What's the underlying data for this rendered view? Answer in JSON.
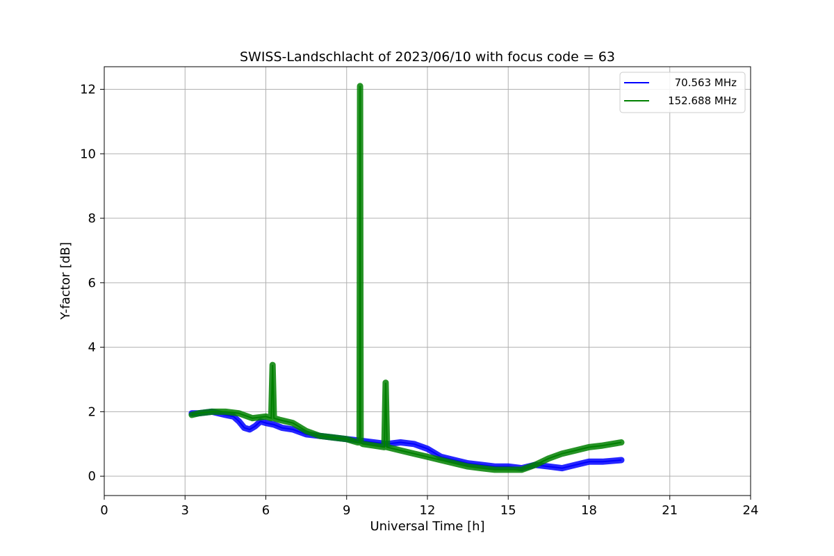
{
  "chart_data": {
    "type": "line",
    "title": "SWISS-Landschlacht of 2023/06/10 with focus code = 63",
    "xlabel": "Universal Time [h]",
    "ylabel": "Y-factor [dB]",
    "xlim": [
      0,
      24
    ],
    "ylim": [
      -0.6,
      12.7
    ],
    "xticks": [
      0,
      3,
      6,
      9,
      12,
      15,
      18,
      21,
      24
    ],
    "yticks": [
      0,
      2,
      4,
      6,
      8,
      10,
      12
    ],
    "grid": true,
    "legend_position": "top-right",
    "series": [
      {
        "name": "70.563 MHz",
        "color": "#0000ff",
        "x": [
          3.25,
          3.5,
          4.0,
          4.5,
          4.8,
          5.0,
          5.2,
          5.4,
          5.6,
          5.8,
          6.0,
          6.3,
          6.6,
          7.0,
          7.5,
          8.0,
          8.5,
          9.0,
          9.5,
          10.0,
          10.5,
          11.0,
          11.5,
          12.0,
          12.5,
          13.0,
          13.5,
          14.0,
          14.5,
          15.0,
          15.5,
          16.0,
          16.5,
          17.0,
          17.5,
          18.0,
          18.5,
          19.2
        ],
        "y": [
          1.95,
          1.95,
          2.0,
          1.9,
          1.85,
          1.7,
          1.5,
          1.45,
          1.55,
          1.7,
          1.65,
          1.6,
          1.5,
          1.45,
          1.3,
          1.25,
          1.2,
          1.15,
          1.1,
          1.05,
          1.0,
          1.05,
          1.0,
          0.85,
          0.6,
          0.5,
          0.4,
          0.35,
          0.3,
          0.3,
          0.25,
          0.35,
          0.3,
          0.25,
          0.35,
          0.45,
          0.45,
          0.5
        ]
      },
      {
        "name": "152.688 MHz",
        "color": "#008000",
        "x": [
          3.25,
          3.5,
          4.0,
          4.5,
          5.0,
          5.5,
          6.0,
          6.2,
          6.25,
          6.3,
          6.5,
          7.0,
          7.5,
          8.0,
          8.5,
          9.0,
          9.4,
          9.48,
          9.5,
          9.52,
          9.6,
          10.0,
          10.4,
          10.45,
          10.5,
          11.0,
          11.5,
          12.0,
          12.5,
          13.0,
          13.5,
          14.0,
          14.5,
          15.0,
          15.5,
          16.0,
          16.5,
          17.0,
          17.5,
          18.0,
          18.5,
          19.2
        ],
        "y": [
          1.9,
          1.95,
          2.0,
          2.0,
          1.95,
          1.8,
          1.85,
          1.8,
          3.45,
          1.8,
          1.75,
          1.65,
          1.4,
          1.25,
          1.2,
          1.15,
          1.05,
          1.05,
          12.1,
          1.05,
          1.0,
          0.95,
          0.9,
          2.9,
          0.9,
          0.8,
          0.7,
          0.6,
          0.5,
          0.4,
          0.3,
          0.25,
          0.2,
          0.2,
          0.2,
          0.35,
          0.55,
          0.7,
          0.8,
          0.9,
          0.95,
          1.05
        ]
      }
    ]
  }
}
